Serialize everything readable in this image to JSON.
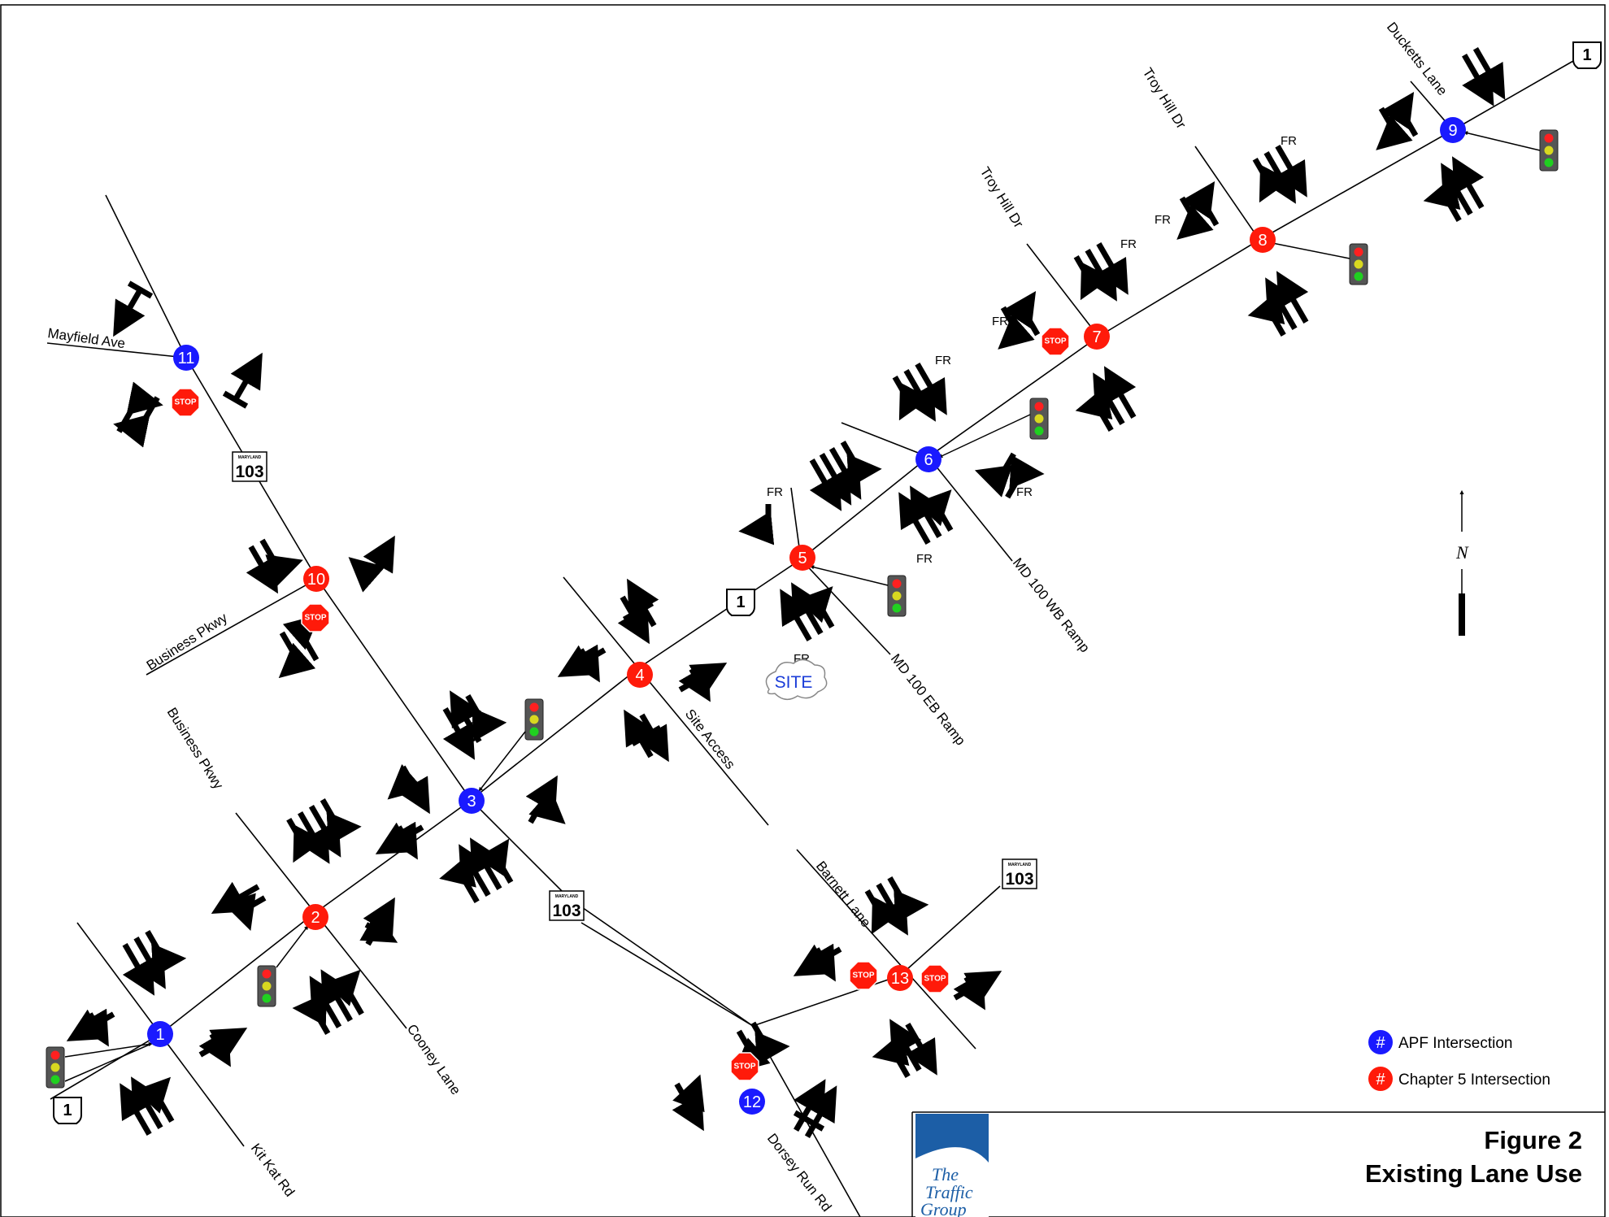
{
  "figure": {
    "number": "Figure 2",
    "title": "Existing Lane Use"
  },
  "logo": {
    "line1": "The",
    "line2": "Traffic",
    "line3": "Group"
  },
  "legend": {
    "apf": "APF Intersection",
    "chapter5": "Chapter 5 Intersection",
    "symbol": "#"
  },
  "colors": {
    "apf": "#1a1aff",
    "chapter5": "#ff1a0a",
    "site": "#1a3cd8",
    "signal_housing": "#555555"
  },
  "north_label": "N",
  "site_label": "SITE",
  "stop_label": "STOP",
  "fr_label": "FR",
  "shields": {
    "us1": "1",
    "md103": "103",
    "maryland": "MARYLAND"
  },
  "roads": {
    "mayfield": "Mayfield Ave",
    "business1": "Business Pkwy",
    "business2": "Business Pkwy",
    "cooney": "Cooney Lane",
    "kitkat": "Kit Kat Rd",
    "site_access": "Site Access",
    "barnett": "Barnett Lane",
    "dorsey": "Dorsey Run Rd",
    "md100eb": "MD 100 EB Ramp",
    "md100wb": "MD 100 WB Ramp",
    "troy1": "Troy Hill Dr",
    "troy2": "Troy Hill Dr",
    "ducketts": "Ducketts Lane"
  },
  "intersections": [
    {
      "id": "1",
      "type": "apf"
    },
    {
      "id": "2",
      "type": "chapter5"
    },
    {
      "id": "3",
      "type": "apf"
    },
    {
      "id": "4",
      "type": "chapter5"
    },
    {
      "id": "5",
      "type": "chapter5"
    },
    {
      "id": "6",
      "type": "apf"
    },
    {
      "id": "7",
      "type": "chapter5"
    },
    {
      "id": "8",
      "type": "chapter5"
    },
    {
      "id": "9",
      "type": "apf"
    },
    {
      "id": "10",
      "type": "chapter5"
    },
    {
      "id": "11",
      "type": "apf"
    },
    {
      "id": "12",
      "type": "apf"
    },
    {
      "id": "13",
      "type": "chapter5"
    }
  ]
}
